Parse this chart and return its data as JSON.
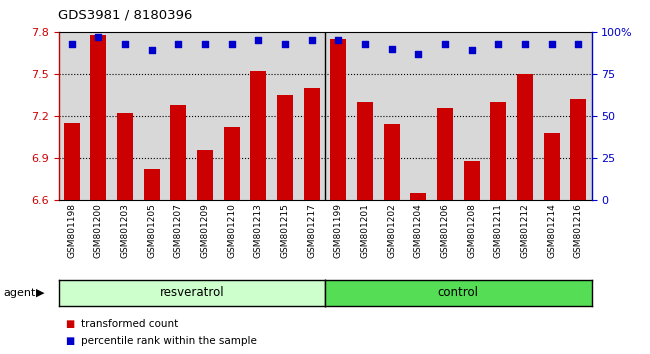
{
  "title": "GDS3981 / 8180396",
  "samples": [
    "GSM801198",
    "GSM801200",
    "GSM801203",
    "GSM801205",
    "GSM801207",
    "GSM801209",
    "GSM801210",
    "GSM801213",
    "GSM801215",
    "GSM801217",
    "GSM801199",
    "GSM801201",
    "GSM801202",
    "GSM801204",
    "GSM801206",
    "GSM801208",
    "GSM801211",
    "GSM801212",
    "GSM801214",
    "GSM801216"
  ],
  "bar_values": [
    7.15,
    7.78,
    7.22,
    6.82,
    7.28,
    6.96,
    7.12,
    7.52,
    7.35,
    7.4,
    7.75,
    7.3,
    7.14,
    6.65,
    7.26,
    6.88,
    7.3,
    7.5,
    7.08,
    7.32
  ],
  "percentile_values": [
    93,
    97,
    93,
    89,
    93,
    93,
    93,
    95,
    93,
    95,
    95,
    93,
    90,
    87,
    93,
    89,
    93,
    93,
    93,
    93
  ],
  "bar_color": "#cc0000",
  "dot_color": "#0000cc",
  "ylim_left": [
    6.6,
    7.8
  ],
  "ylim_right": [
    0,
    100
  ],
  "yticks_left": [
    6.6,
    6.9,
    7.2,
    7.5,
    7.8
  ],
  "yticks_right": [
    0,
    25,
    50,
    75,
    100
  ],
  "ytick_labels_right": [
    "0",
    "25",
    "50",
    "75",
    "100%"
  ],
  "grid_values": [
    6.9,
    7.2,
    7.5
  ],
  "group1_label": "resveratrol",
  "group2_label": "control",
  "group1_count": 10,
  "group2_count": 10,
  "agent_label": "agent",
  "legend1": "transformed count",
  "legend2": "percentile rank within the sample",
  "bg_color_plot": "#d8d8d8",
  "group1_color": "#ccffcc",
  "group2_color": "#55dd55",
  "bar_width": 0.6,
  "fig_width": 6.5,
  "fig_height": 3.54,
  "dpi": 100
}
